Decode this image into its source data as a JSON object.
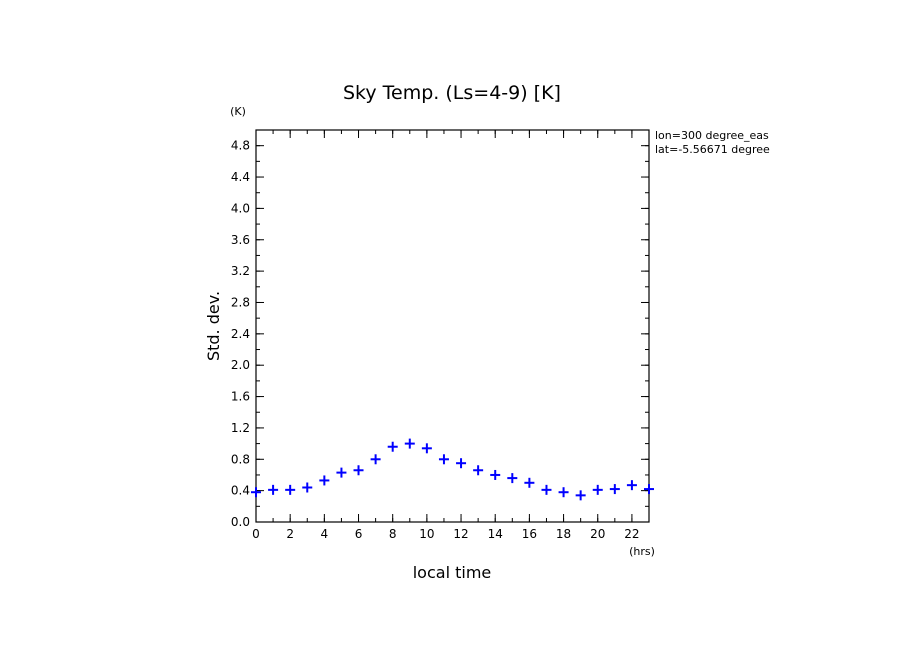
{
  "chart_data": {
    "type": "scatter",
    "title": "Sky Temp. (Ls=4-9) [K]",
    "xlabel": "local time",
    "ylabel": "Std. dev.",
    "x_unit": "(hrs)",
    "y_unit": "(K)",
    "xlim": [
      0,
      23
    ],
    "ylim": [
      0,
      5
    ],
    "x_ticks": [
      0,
      2,
      4,
      6,
      8,
      10,
      12,
      14,
      16,
      18,
      20,
      22
    ],
    "y_ticks": [
      0.0,
      0.4,
      0.8,
      1.2,
      1.6,
      2.0,
      2.4,
      2.8,
      3.2,
      3.6,
      4.0,
      4.4,
      4.8
    ],
    "annotations": [
      "lon=300 degree_eas",
      "lat=-5.56671 degree"
    ],
    "marker": "plus",
    "color": "#0000ff",
    "series": [
      {
        "x": [
          0,
          1,
          2,
          3,
          4,
          5,
          6,
          7,
          8,
          9,
          10,
          11,
          12,
          13,
          14,
          15,
          16,
          17,
          18,
          19,
          20,
          21,
          22,
          23
        ],
        "y": [
          0.38,
          0.41,
          0.41,
          0.44,
          0.53,
          0.63,
          0.66,
          0.8,
          0.96,
          1.0,
          0.94,
          0.8,
          0.75,
          0.66,
          0.6,
          0.56,
          0.5,
          0.41,
          0.38,
          0.34,
          0.41,
          0.42,
          0.47,
          0.42
        ]
      }
    ]
  }
}
